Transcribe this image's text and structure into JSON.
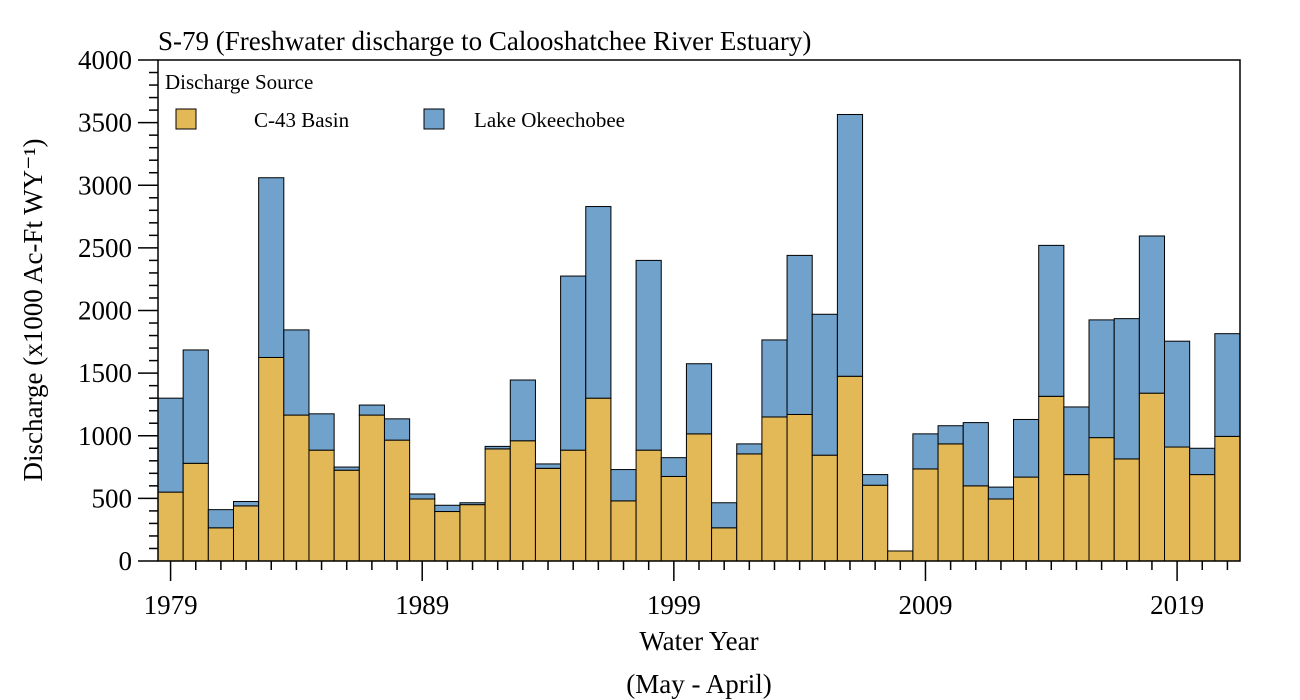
{
  "chart_data": {
    "type": "bar",
    "stacked": true,
    "title": "S-79 (Freshwater discharge to Calooshatchee River Estuary)",
    "xlabel_line1": "Water Year",
    "xlabel_line2": "(May - April)",
    "ylabel": "Discharge (x1000 Ac-Ft WY⁻¹)",
    "ylim": [
      0,
      4000
    ],
    "yticks": [
      0,
      500,
      1000,
      1500,
      2000,
      2500,
      3000,
      3500,
      4000
    ],
    "xtick_labels": [
      "1979",
      "1989",
      "1999",
      "2009",
      "2019"
    ],
    "xtick_years": [
      1979,
      1989,
      1999,
      2009,
      2019
    ],
    "grid": false,
    "legend": {
      "title": "Discharge Source",
      "placement": "top-left",
      "entries": [
        "C-43 Basin",
        "Lake Okeechobee"
      ]
    },
    "x": [
      1979,
      1980,
      1981,
      1982,
      1983,
      1984,
      1985,
      1986,
      1987,
      1988,
      1989,
      1990,
      1991,
      1992,
      1993,
      1994,
      1995,
      1996,
      1997,
      1998,
      1999,
      2000,
      2001,
      2002,
      2003,
      2004,
      2005,
      2006,
      2007,
      2008,
      2009,
      2010,
      2011,
      2012,
      2013,
      2014,
      2015,
      2016,
      2017,
      2018,
      2019,
      2020,
      2021
    ],
    "series": [
      {
        "name": "C-43 Basin",
        "color": "#E3B857",
        "values": [
          550,
          780,
          265,
          440,
          1625,
          1165,
          885,
          725,
          1165,
          965,
          495,
          395,
          450,
          895,
          960,
          740,
          885,
          1300,
          480,
          885,
          675,
          1015,
          265,
          855,
          1150,
          1170,
          845,
          1475,
          605,
          80,
          735,
          935,
          600,
          495,
          670,
          1315,
          690,
          985,
          815,
          1340,
          910,
          690,
          995
        ]
      },
      {
        "name": "Lake Okeechobee",
        "color": "#71A2CB",
        "values": [
          750,
          905,
          145,
          35,
          1435,
          680,
          290,
          25,
          80,
          170,
          40,
          50,
          15,
          20,
          485,
          35,
          1390,
          1530,
          250,
          1515,
          150,
          560,
          200,
          80,
          615,
          1270,
          1125,
          2090,
          85,
          0,
          280,
          145,
          505,
          95,
          460,
          1205,
          540,
          940,
          1120,
          1255,
          845,
          210,
          820
        ]
      }
    ]
  }
}
